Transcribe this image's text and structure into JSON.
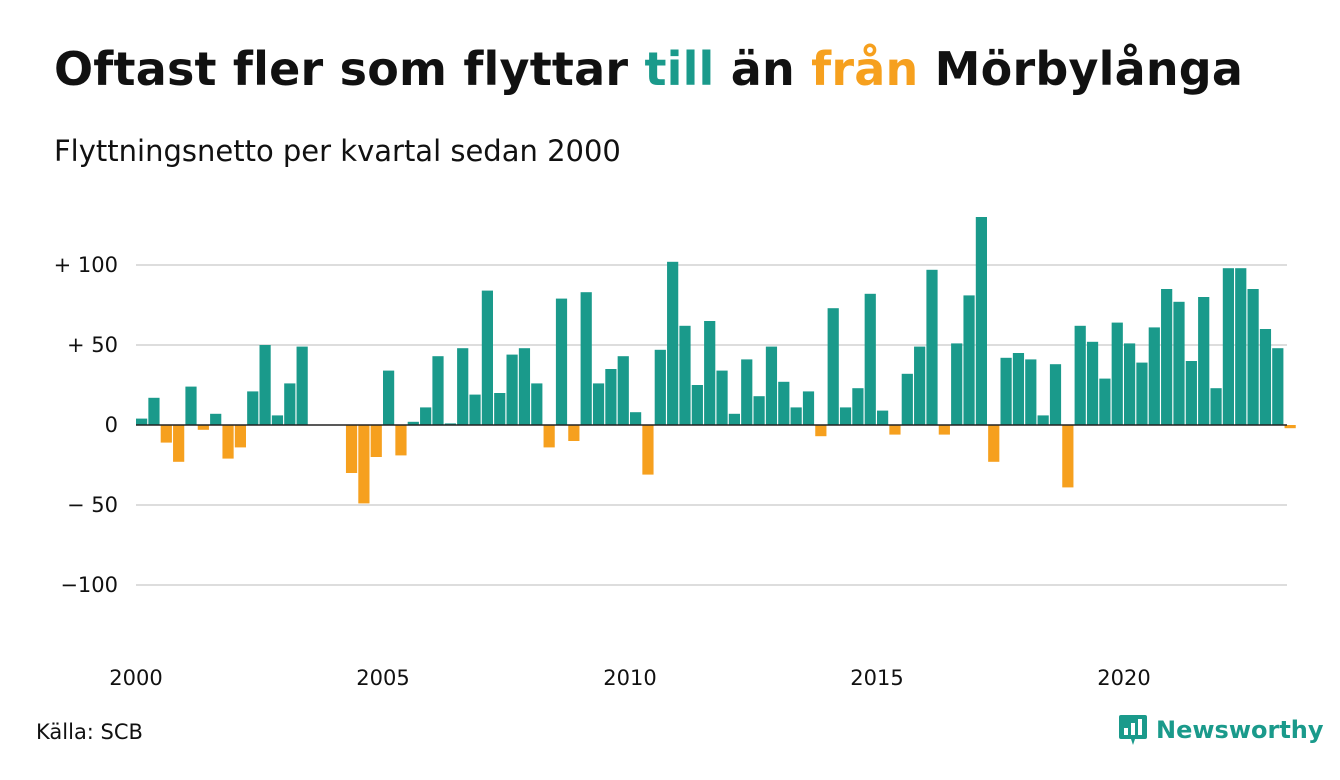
{
  "title": {
    "part1": "Oftast fler som flyttar ",
    "to": "till",
    "part2": " än ",
    "from": "från",
    "part3": " Mörbylånga"
  },
  "subtitle": "Flyttningsnetto per kvartal sedan 2000",
  "source": "Källa: SCB",
  "brand": "Newsworthy",
  "colors": {
    "positive": "#1a9a8b",
    "negative": "#f6a01e",
    "grid": "#dddddd",
    "text": "#111111"
  },
  "chart_data": {
    "type": "bar",
    "ylim": [
      -120,
      130
    ],
    "y_ticks": [
      {
        "value": 100,
        "label": "+ 100"
      },
      {
        "value": 50,
        "label": "+  50"
      },
      {
        "value": 0,
        "label": "0"
      },
      {
        "value": -50,
        "label": "− 50"
      },
      {
        "value": -100,
        "label": "−100"
      }
    ],
    "x_ticks": [
      {
        "year": 2000,
        "label": "2000"
      },
      {
        "year": 2005,
        "label": "2005"
      },
      {
        "year": 2010,
        "label": "2010"
      },
      {
        "year": 2015,
        "label": "2015"
      },
      {
        "year": 2020,
        "label": "2020"
      }
    ],
    "start_year": 2000,
    "quarters_per_year": 4,
    "values": [
      4,
      17,
      -11,
      -23,
      24,
      -3,
      7,
      -21,
      -14,
      21,
      50,
      6,
      26,
      49,
      0,
      0,
      0,
      -30,
      -49,
      -20,
      34,
      -19,
      2,
      11,
      43,
      1,
      48,
      19,
      84,
      20,
      44,
      48,
      26,
      -14,
      79,
      -10,
      83,
      26,
      35,
      43,
      8,
      -31,
      47,
      102,
      62,
      25,
      65,
      34,
      7,
      41,
      18,
      49,
      27,
      11,
      21,
      -7,
      73,
      11,
      23,
      82,
      9,
      -6,
      32,
      49,
      97,
      -6,
      51,
      81,
      130,
      -23,
      42,
      45,
      41,
      6,
      38,
      -39,
      62,
      52,
      29,
      64,
      51,
      39,
      61,
      85,
      77,
      40,
      80,
      23,
      98,
      98,
      85,
      60,
      48,
      -2
    ]
  }
}
